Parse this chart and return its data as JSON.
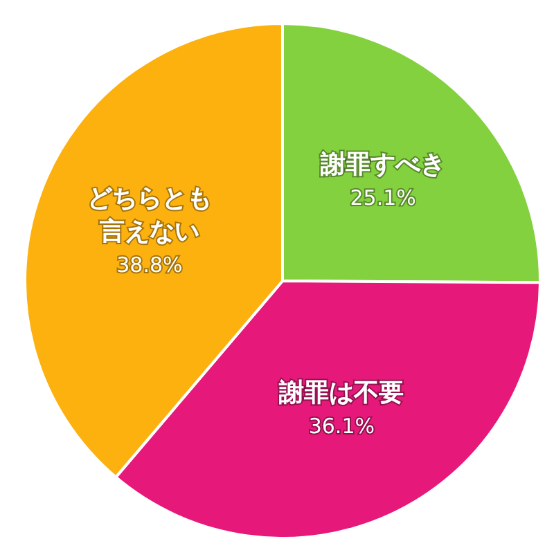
{
  "chart_data": {
    "type": "pie",
    "categories": [
      "謝罪すべき",
      "謝罪は不要",
      "どちらとも言えない"
    ],
    "values": [
      25.1,
      36.1,
      38.8
    ],
    "colors": [
      "#84d13f",
      "#e6197b",
      "#fcb10f"
    ],
    "value_labels": [
      "25.1%",
      "36.1%",
      "38.8%"
    ]
  }
}
